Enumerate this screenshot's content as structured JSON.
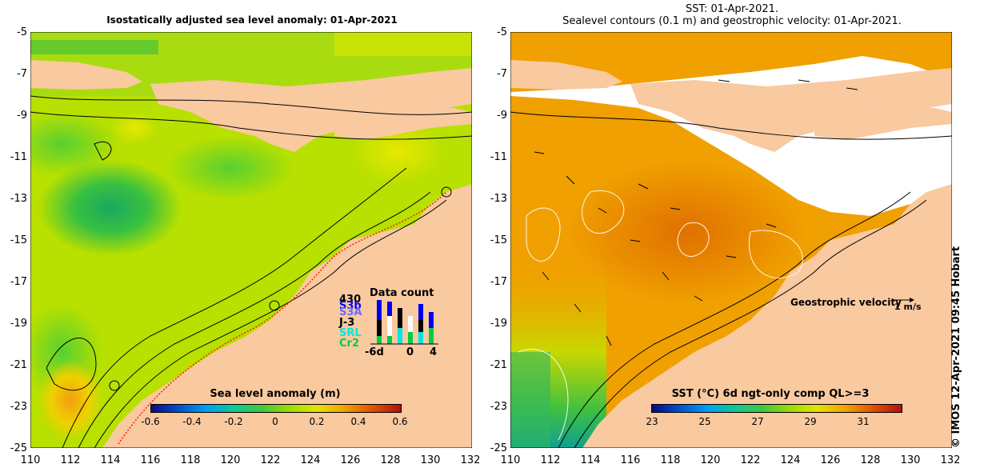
{
  "left_panel": {
    "title": "Isostatically adjusted sea level anomaly: 01-Apr-2021",
    "colorbar": {
      "title": "Sea level anomaly (m)",
      "labels": [
        "-0.6",
        "-0.4",
        "-0.2",
        "0",
        "0.2",
        "0.4",
        "0.6"
      ]
    },
    "data_count": {
      "title": "Data count",
      "labels": [
        "430",
        "S3b",
        "S3A",
        "J-3",
        "SRL",
        "Cr2"
      ],
      "colors": [
        "#000000",
        "#0000ff",
        "#6b6bff",
        "#000000",
        "#00e5e5",
        "#00cc44"
      ],
      "axis_labels": [
        "-6d",
        "0",
        "4"
      ]
    }
  },
  "right_panel": {
    "title_line1": "SST: 01-Apr-2021.",
    "title_line2": "Sealevel contours (0.1 m) and geostrophic velocity: 01-Apr-2021.",
    "colorbar": {
      "title": "SST (°C) 6d ngt-only comp QL>=3",
      "labels": [
        "23",
        "25",
        "27",
        "29",
        "31"
      ]
    },
    "velocity_label": "Geostrophic velocity",
    "velocity_unit": "1 m/s"
  },
  "axes": {
    "x_ticks": [
      "110",
      "112",
      "114",
      "116",
      "118",
      "120",
      "122",
      "124",
      "126",
      "128",
      "130",
      "132"
    ],
    "y_ticks": [
      "-5",
      "-7",
      "-9",
      "-11",
      "-13",
      "-15",
      "-17",
      "-19",
      "-21",
      "-23",
      "-25"
    ]
  },
  "credit": "© IMOS 12-Apr-2021 09:45 Hobart",
  "colors": {
    "land": "#f9c9a0",
    "cloud": "#ffffff",
    "sla_zero": "#b8e000",
    "sst_warm": "#f0a000"
  }
}
